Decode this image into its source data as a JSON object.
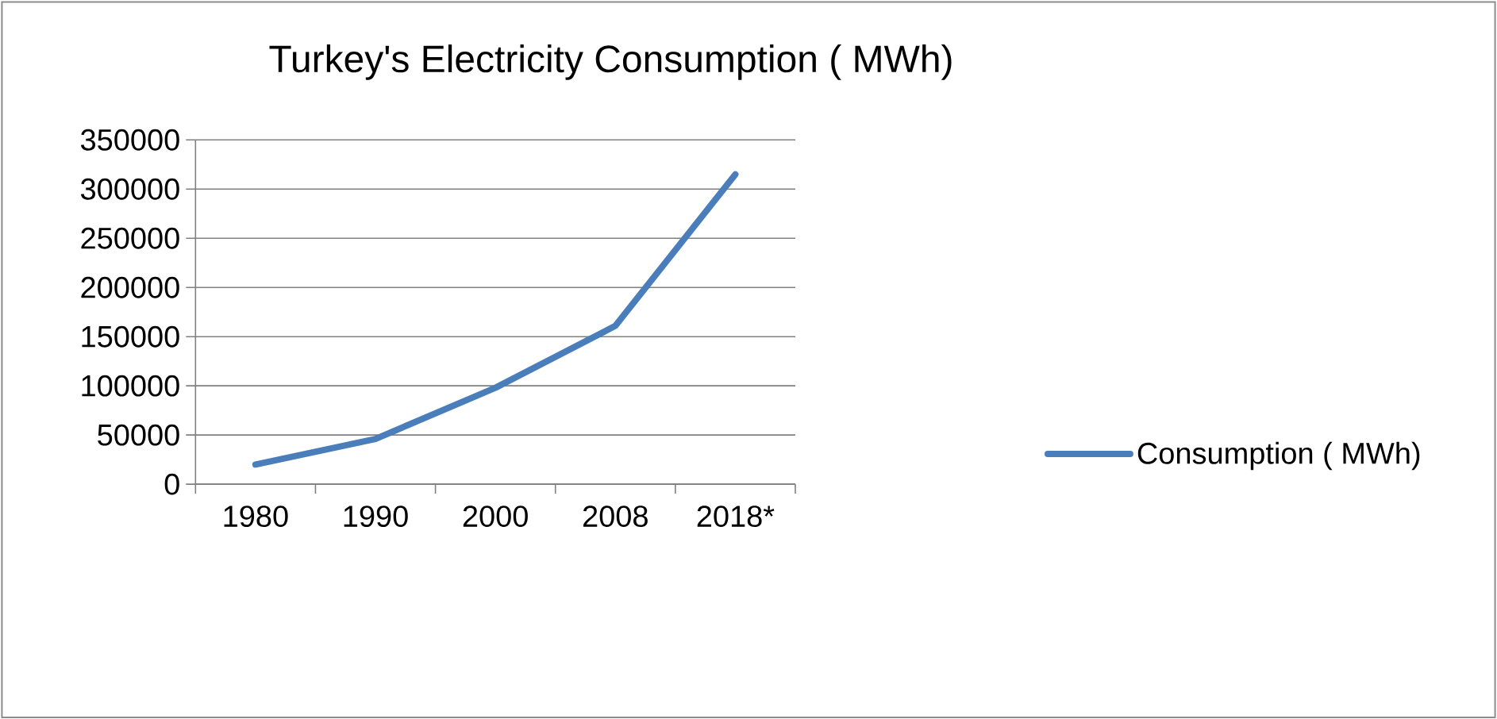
{
  "chart_data": {
    "type": "line",
    "title": "Turkey's Electricity Consumption ( MWh)",
    "categories": [
      "1980",
      "1990",
      "2000",
      "2008",
      "2018*"
    ],
    "series": [
      {
        "name": "Consumption ( MWh)",
        "color": "#4a7ebb",
        "values": [
          20000,
          46000,
          98000,
          161000,
          315000
        ]
      }
    ],
    "ylim": [
      0,
      350000
    ],
    "yticks": [
      0,
      50000,
      100000,
      150000,
      200000,
      250000,
      300000,
      350000
    ],
    "grid": "y",
    "legend": "right",
    "marker": "none",
    "line_style": "solid"
  }
}
